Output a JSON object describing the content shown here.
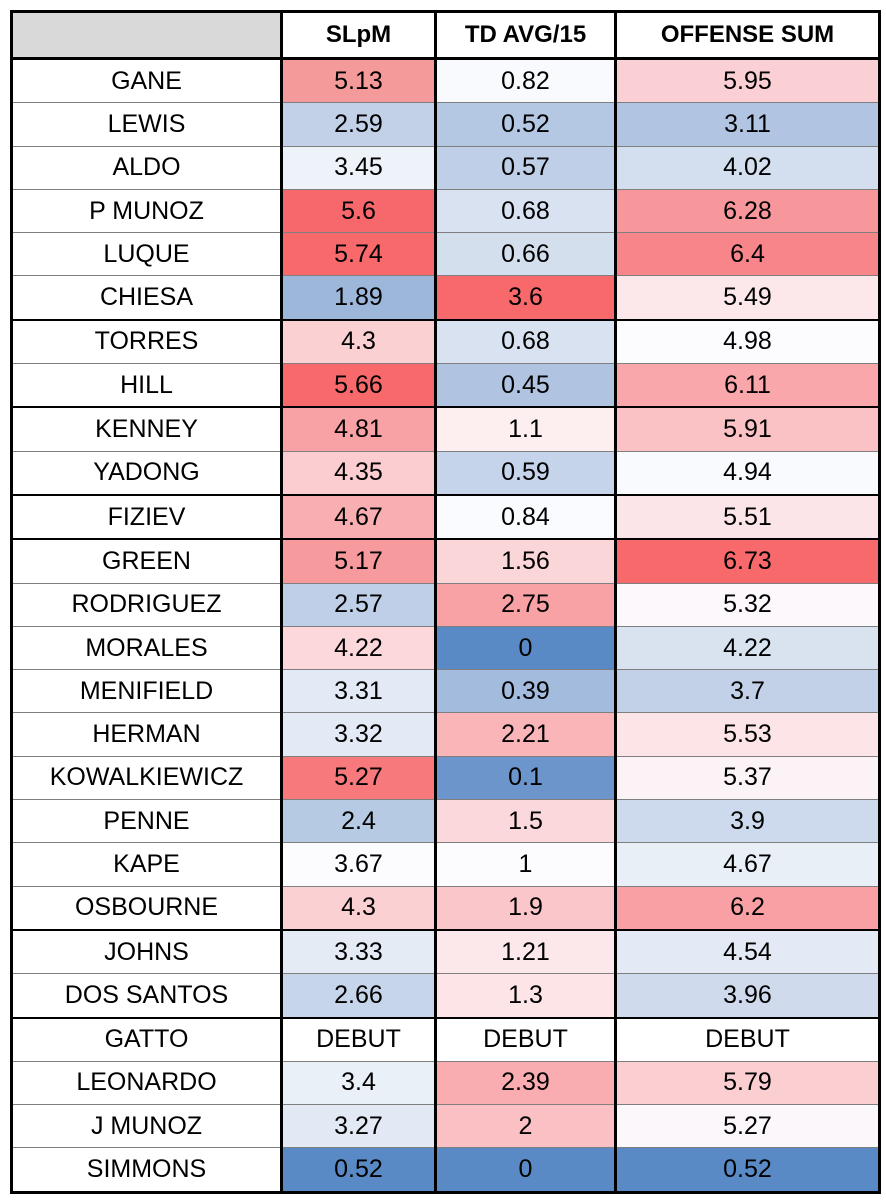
{
  "headers": [
    "",
    "SLpM",
    "TD AVG/15",
    "OFFENSE SUM"
  ],
  "rows": [
    {
      "name": "GANE",
      "slpm": "5.13",
      "td": "0.82",
      "sum": "5.95",
      "colors": [
        "#f59a9a",
        "#f9fafd",
        "#fbd0d4"
      ]
    },
    {
      "name": "LEWIS",
      "slpm": "2.59",
      "td": "0.52",
      "sum": "3.11",
      "colors": [
        "#c2d1e8",
        "#b5c8e3",
        "#b1c5e2"
      ]
    },
    {
      "name": "ALDO",
      "slpm": "3.45",
      "td": "0.57",
      "sum": "4.02",
      "colors": [
        "#eef2f9",
        "#bfcfe7",
        "#d3deef"
      ]
    },
    {
      "name": "P MUNOZ",
      "slpm": "5.6",
      "td": "0.68",
      "sum": "6.28",
      "colors": [
        "#f7686c",
        "#d8e2f0",
        "#f8979b"
      ]
    },
    {
      "name": "LUQUE",
      "slpm": "5.74",
      "td": "0.66",
      "sum": "6.4",
      "colors": [
        "#f8696b",
        "#d4dfee",
        "#f88589"
      ]
    },
    {
      "name": "CHIESA",
      "slpm": "1.89",
      "td": "3.6",
      "sum": "5.49",
      "colors": [
        "#9db7db",
        "#f8696b",
        "#fce8ea"
      ]
    },
    {
      "name": "TORRES",
      "slpm": "4.3",
      "td": "0.68",
      "sum": "4.98",
      "colors": [
        "#fbd0d3",
        "#d8e2f0",
        "#fcfcff"
      ]
    },
    {
      "name": "HILL",
      "slpm": "5.66",
      "td": "0.45",
      "sum": "6.11",
      "colors": [
        "#f8696b",
        "#b0c4e1",
        "#f9a7aa"
      ]
    },
    {
      "name": "KENNEY",
      "slpm": "4.81",
      "td": "1.1",
      "sum": "5.91",
      "colors": [
        "#f9a2a5",
        "#fdeef0",
        "#fbc2c5"
      ]
    },
    {
      "name": "YADONG",
      "slpm": "4.35",
      "td": "0.59",
      "sum": "4.94",
      "colors": [
        "#fbcdd0",
        "#c5d4ea",
        "#f9fafd"
      ]
    },
    {
      "name": "FIZIEV",
      "slpm": "4.67",
      "td": "0.84",
      "sum": "5.51",
      "colors": [
        "#f9afb2",
        "#fafbfe",
        "#fce5e8"
      ]
    },
    {
      "name": "GREEN",
      "slpm": "5.17",
      "td": "1.56",
      "sum": "6.73",
      "colors": [
        "#f79a9d",
        "#fbd6d9",
        "#f8696b"
      ]
    },
    {
      "name": "RODRIGUEZ",
      "slpm": "2.57",
      "td": "2.75",
      "sum": "5.32",
      "colors": [
        "#bfcfe7",
        "#f9a2a5",
        "#fcf8fb"
      ]
    },
    {
      "name": "MORALES",
      "slpm": "4.22",
      "td": "0",
      "sum": "4.22",
      "colors": [
        "#fcd8db",
        "#5a8ac6",
        "#d9e3f0"
      ]
    },
    {
      "name": "MENIFIELD",
      "slpm": "3.31",
      "td": "0.39",
      "sum": "3.7",
      "colors": [
        "#e3eaf5",
        "#a3bcdd",
        "#c2d1e8"
      ]
    },
    {
      "name": "HERMAN",
      "slpm": "3.32",
      "td": "2.21",
      "sum": "5.53",
      "colors": [
        "#e3eaf5",
        "#f9b5b8",
        "#fce4e7"
      ]
    },
    {
      "name": "KOWALKIEWICZ",
      "slpm": "5.27",
      "td": "0.1",
      "sum": "5.37",
      "colors": [
        "#f8797c",
        "#6b95cb",
        "#fcf3f6"
      ]
    },
    {
      "name": "PENNE",
      "slpm": "2.4",
      "td": "1.5",
      "sum": "3.9",
      "colors": [
        "#b7cae4",
        "#fbd8db",
        "#cdd9ec"
      ]
    },
    {
      "name": "KAPE",
      "slpm": "3.67",
      "td": "1",
      "sum": "4.67",
      "colors": [
        "#fcfcff",
        "#fcfcff",
        "#e9eff7"
      ]
    },
    {
      "name": "OSBOURNE",
      "slpm": "4.3",
      "td": "1.9",
      "sum": "6.2",
      "colors": [
        "#fbd0d3",
        "#fbc6c9",
        "#f8a0a3"
      ]
    },
    {
      "name": "JOHNS",
      "slpm": "3.33",
      "td": "1.21",
      "sum": "4.54",
      "colors": [
        "#e4ebf5",
        "#fce8eb",
        "#e3eaf5"
      ]
    },
    {
      "name": "DOS SANTOS",
      "slpm": "2.66",
      "td": "1.3",
      "sum": "3.96",
      "colors": [
        "#c6d5ea",
        "#fce4e7",
        "#cfdbed"
      ]
    },
    {
      "name": "GATTO",
      "slpm": "DEBUT",
      "td": "DEBUT",
      "sum": "DEBUT",
      "colors": [
        "#ffffff",
        "#ffffff",
        "#ffffff"
      ]
    },
    {
      "name": "LEONARDO",
      "slpm": "3.4",
      "td": "2.39",
      "sum": "5.79",
      "colors": [
        "#eaf0f8",
        "#f9adb0",
        "#fbcfd2"
      ]
    },
    {
      "name": "J MUNOZ",
      "slpm": "3.27",
      "td": "2",
      "sum": "5.27",
      "colors": [
        "#e2e9f4",
        "#fbc0c3",
        "#fcf7fa"
      ]
    },
    {
      "name": "SIMMONS",
      "slpm": "0.52",
      "td": "0",
      "sum": "0.52",
      "colors": [
        "#5a8ac6",
        "#5a8ac6",
        "#5a8ac6"
      ]
    }
  ]
}
